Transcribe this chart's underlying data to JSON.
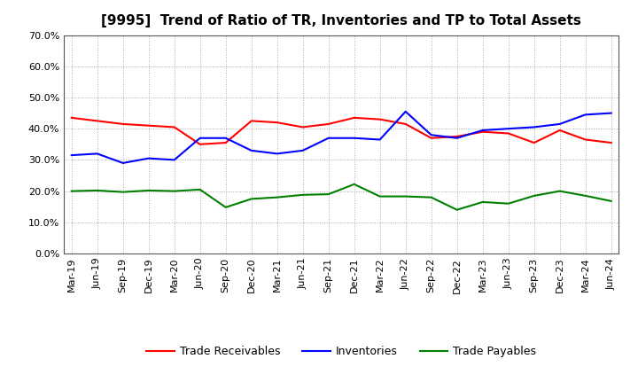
{
  "title": "[9995]  Trend of Ratio of TR, Inventories and TP to Total Assets",
  "x_labels": [
    "Mar-19",
    "Jun-19",
    "Sep-19",
    "Dec-19",
    "Mar-20",
    "Jun-20",
    "Sep-20",
    "Dec-20",
    "Mar-21",
    "Jun-21",
    "Sep-21",
    "Dec-21",
    "Mar-22",
    "Jun-22",
    "Sep-22",
    "Dec-22",
    "Mar-23",
    "Jun-23",
    "Sep-23",
    "Dec-23",
    "Mar-24",
    "Jun-24"
  ],
  "trade_receivables": [
    0.435,
    0.425,
    0.415,
    0.41,
    0.405,
    0.35,
    0.355,
    0.425,
    0.42,
    0.405,
    0.415,
    0.435,
    0.43,
    0.415,
    0.37,
    0.375,
    0.39,
    0.385,
    0.355,
    0.395,
    0.365,
    0.355
  ],
  "inventories": [
    0.315,
    0.32,
    0.29,
    0.305,
    0.3,
    0.37,
    0.37,
    0.33,
    0.32,
    0.33,
    0.37,
    0.37,
    0.365,
    0.455,
    0.38,
    0.37,
    0.395,
    0.4,
    0.405,
    0.415,
    0.445,
    0.45
  ],
  "trade_payables": [
    0.2,
    0.202,
    0.197,
    0.202,
    0.2,
    0.205,
    0.148,
    0.175,
    0.18,
    0.188,
    0.19,
    0.222,
    0.183,
    0.183,
    0.18,
    0.14,
    0.165,
    0.16,
    0.185,
    0.2,
    0.185,
    0.168
  ],
  "ylim": [
    0.0,
    0.7
  ],
  "yticks": [
    0.0,
    0.1,
    0.2,
    0.3,
    0.4,
    0.5,
    0.6,
    0.7
  ],
  "tr_color": "#ff0000",
  "inv_color": "#0000ff",
  "tp_color": "#008000",
  "background_color": "#ffffff",
  "grid_color": "#aaaaaa",
  "spine_color": "#555555",
  "title_fontsize": 11,
  "tick_fontsize": 8,
  "legend_fontsize": 9
}
